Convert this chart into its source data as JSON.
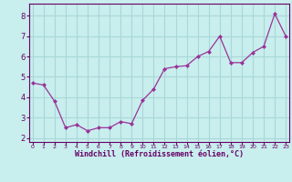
{
  "x": [
    0,
    1,
    2,
    3,
    4,
    5,
    6,
    7,
    8,
    9,
    10,
    11,
    12,
    13,
    14,
    15,
    16,
    17,
    18,
    19,
    20,
    21,
    22,
    23
  ],
  "y": [
    4.7,
    4.6,
    3.8,
    2.5,
    2.65,
    2.35,
    2.5,
    2.5,
    2.8,
    2.7,
    3.85,
    4.4,
    5.4,
    5.5,
    5.55,
    6.0,
    6.25,
    7.0,
    5.7,
    5.7,
    6.2,
    6.5,
    8.1,
    7.0
  ],
  "line_color": "#993399",
  "marker_color": "#993399",
  "bg_color": "#c8eeed",
  "grid_color": "#a8d8d8",
  "xlabel": "Windchill (Refroidissement éolien,°C)",
  "xlabel_color": "#660066",
  "yticks": [
    2,
    3,
    4,
    5,
    6,
    7,
    8
  ],
  "xtick_labels": [
    "0",
    "1",
    "2",
    "3",
    "4",
    "5",
    "6",
    "7",
    "8",
    "9",
    "10",
    "11",
    "12",
    "13",
    "14",
    "15",
    "16",
    "17",
    "18",
    "19",
    "20",
    "21",
    "22",
    "23"
  ],
  "ylim": [
    1.8,
    8.6
  ],
  "xlim": [
    -0.3,
    23.3
  ],
  "tick_color": "#660066",
  "axis_color": "#660066",
  "font_color": "#660066"
}
